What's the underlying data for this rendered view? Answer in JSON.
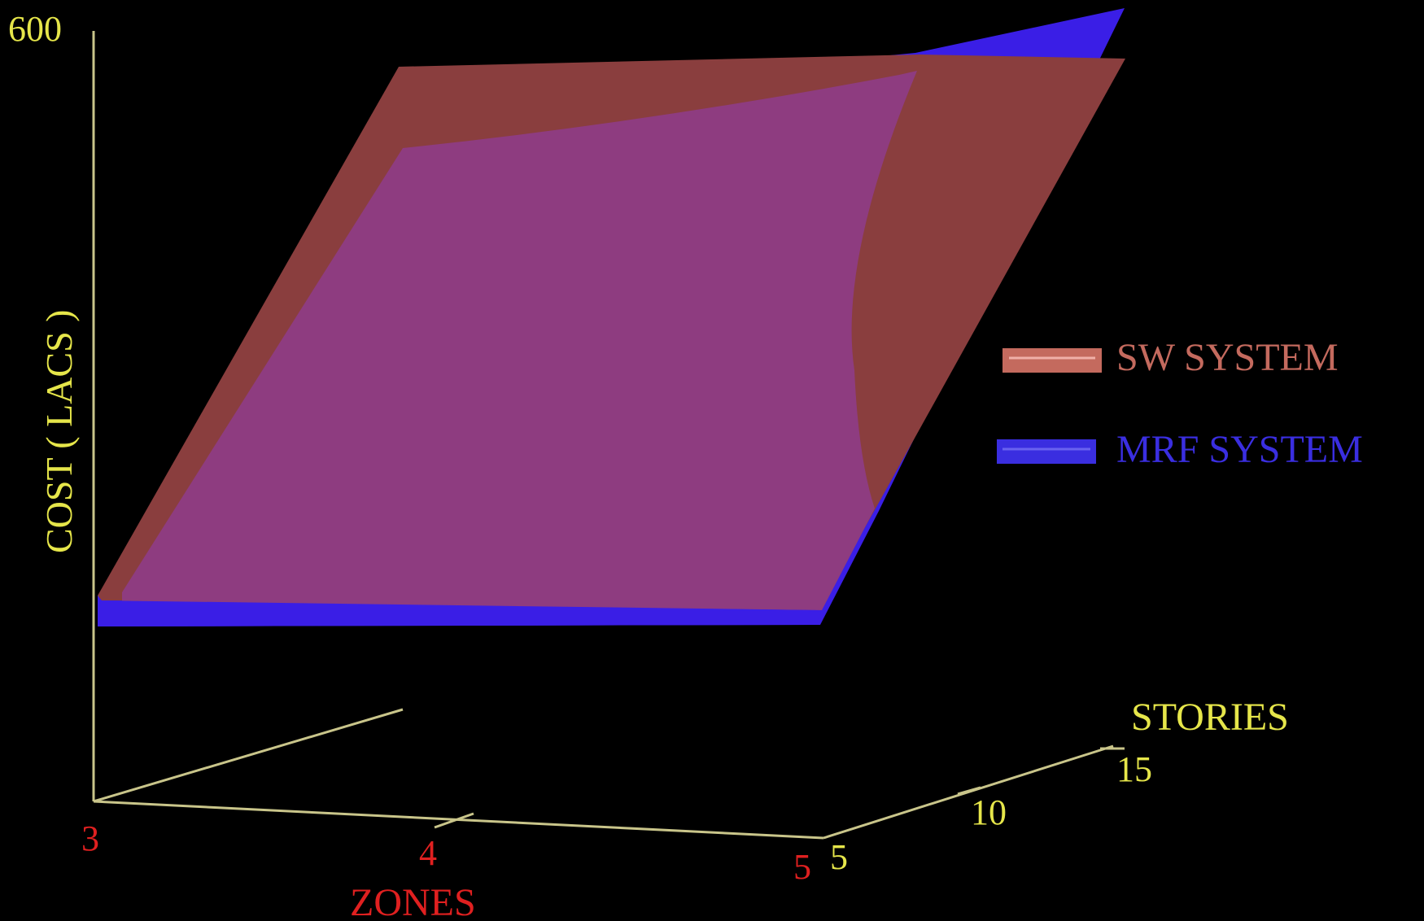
{
  "chart_data": {
    "type": "surface-3d",
    "axes": {
      "z": {
        "label": "COST ( LACS )",
        "top_tick": "600",
        "color": "#e6e64a"
      },
      "x": {
        "label": "ZONES",
        "ticks": [
          "3",
          "4",
          "5"
        ],
        "color": "#e02020"
      },
      "y": {
        "label": "STORIES",
        "ticks": [
          "5",
          "10",
          "15"
        ],
        "color": "#e6e64a"
      }
    },
    "series": [
      {
        "name": "SW SYSTEM",
        "color": "#c46a5e",
        "surface_color": "#8a3e3e"
      },
      {
        "name": "MRF SYSTEM",
        "color": "#3a2ee0",
        "surface_color": "#3a1ee6"
      }
    ],
    "overlap_color": "#8e3c80",
    "legend_position": "right",
    "background": "#000000"
  }
}
